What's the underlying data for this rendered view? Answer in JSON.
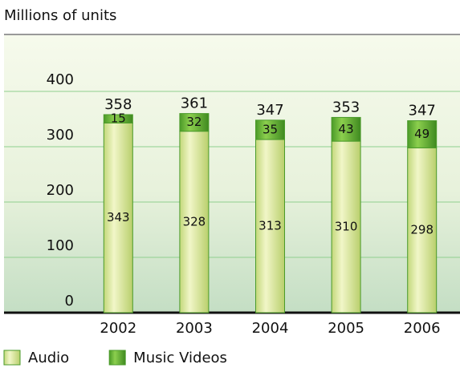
{
  "chart_data": {
    "type": "bar",
    "stacked": true,
    "title": "Millions of units",
    "categories": [
      "2002",
      "2003",
      "2004",
      "2005",
      "2006"
    ],
    "series": [
      {
        "name": "Audio",
        "color": "#d9e89c",
        "values": [
          343,
          328,
          313,
          310,
          298
        ]
      },
      {
        "name": "Music Videos",
        "color": "#5ea833",
        "values": [
          15,
          32,
          35,
          43,
          49
        ]
      }
    ],
    "totals": [
      358,
      361,
      347,
      353,
      347
    ],
    "ylim": [
      0,
      400
    ],
    "yticks": [
      0,
      100,
      200,
      300,
      400
    ],
    "grid": true,
    "legend": "bottom-left"
  }
}
